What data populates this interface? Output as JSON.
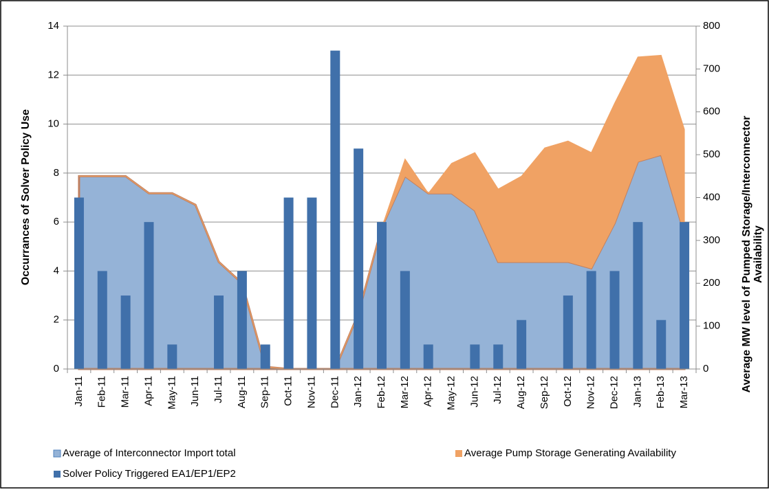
{
  "chart_data": {
    "type": "bar-area-combo",
    "categories": [
      "Jan-11",
      "Feb-11",
      "Mar-11",
      "Apr-11",
      "May-11",
      "Jun-11",
      "Jul-11",
      "Aug-11",
      "Sep-11",
      "Oct-11",
      "Nov-11",
      "Dec-11",
      "Jan-12",
      "Feb-12",
      "Mar-12",
      "Apr-12",
      "May-12",
      "Jun-12",
      "Jul-12",
      "Aug-12",
      "Sep-12",
      "Oct-12",
      "Nov-12",
      "Dec-12",
      "Jan-13",
      "Feb-13",
      "Mar-13"
    ],
    "series": [
      {
        "name": "Average of Interconnector Import total",
        "type": "area",
        "axis": "y2",
        "color": "#95b3d7",
        "values": [
          450,
          450,
          450,
          410,
          410,
          383,
          250,
          200,
          5,
          0,
          0,
          0,
          130,
          330,
          450,
          410,
          410,
          370,
          250,
          250,
          250,
          250,
          235,
          340,
          484,
          500,
          315
        ]
      },
      {
        "name": "Average Pump Storage Generating Availability",
        "type": "area",
        "axis": "y2",
        "stacked": true,
        "color": "#f0a264",
        "values": [
          0,
          0,
          0,
          0,
          0,
          0,
          0,
          0,
          0,
          0,
          0,
          0,
          0,
          0,
          40,
          0,
          70,
          135,
          170,
          200,
          266,
          282,
          270,
          280,
          244,
          232,
          244
        ]
      },
      {
        "name": "Solver Policy Triggered EA1/EP1/EP2",
        "type": "bar",
        "axis": "y",
        "color": "#4070aa",
        "values": [
          7,
          4,
          3,
          6,
          1,
          0,
          3,
          4,
          1,
          7,
          7,
          13,
          9,
          6,
          4,
          1,
          0,
          1,
          1,
          2,
          0,
          3,
          4,
          4,
          6,
          2,
          6
        ]
      }
    ],
    "y_label": "Occurrances of Solver Policy Use",
    "y2_label": [
      "Average MW level of Pumped Storage/Interconnector",
      "Availability"
    ],
    "ylim": [
      0,
      14
    ],
    "yticks": [
      0,
      2,
      4,
      6,
      8,
      10,
      12,
      14
    ],
    "y2lim": [
      0,
      800
    ],
    "y2ticks": [
      0,
      100,
      200,
      300,
      400,
      500,
      600,
      700,
      800
    ],
    "grid": true,
    "legend": "bottom"
  }
}
